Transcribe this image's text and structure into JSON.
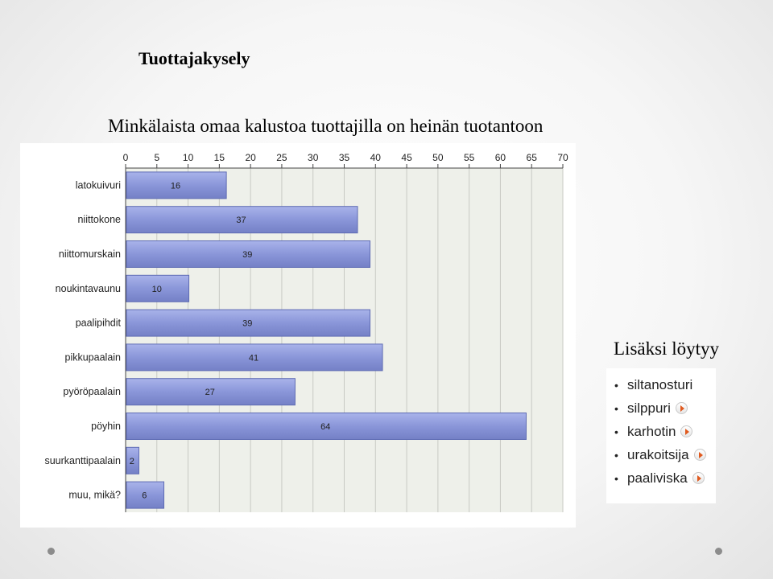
{
  "slide": {
    "title": "Tuottajakysely",
    "subtitle": "Minkälaista omaa kalustoa tuottajilla on heinän tuotantoon",
    "side_heading": "Lisäksi löytyy"
  },
  "extras": [
    {
      "label": "siltanosturi",
      "icon": null
    },
    {
      "label": "silppuri",
      "icon": "play-arrow-icon"
    },
    {
      "label": "karhotin",
      "icon": "play-arrow-icon"
    },
    {
      "label": "urakoitsija",
      "icon": "play-arrow-icon"
    },
    {
      "label": "paaliviska",
      "icon": "play-arrow-icon"
    }
  ],
  "colors": {
    "bar_fill": "#8a96d9",
    "bar_stroke": "#5f6cb4",
    "plot_bg": "#eef0ea",
    "grid": "#c8cac4"
  },
  "chart_data": {
    "type": "bar",
    "orientation": "horizontal",
    "categories": [
      "latokuivuri",
      "niittokone",
      "niittomurskain",
      "noukintavaunu",
      "paalipihdit",
      "pikkupaalain",
      "pyöröpaalain",
      "pöyhin",
      "suurkanttipaalain",
      "muu, mikä?"
    ],
    "values": [
      16,
      37,
      39,
      10,
      39,
      41,
      27,
      64,
      2,
      6
    ],
    "xlim": [
      0,
      70
    ],
    "xticks": [
      0,
      5,
      10,
      15,
      20,
      25,
      30,
      35,
      40,
      45,
      50,
      55,
      60,
      65,
      70
    ],
    "axis_position": "top",
    "grid": true,
    "data_labels": true
  }
}
